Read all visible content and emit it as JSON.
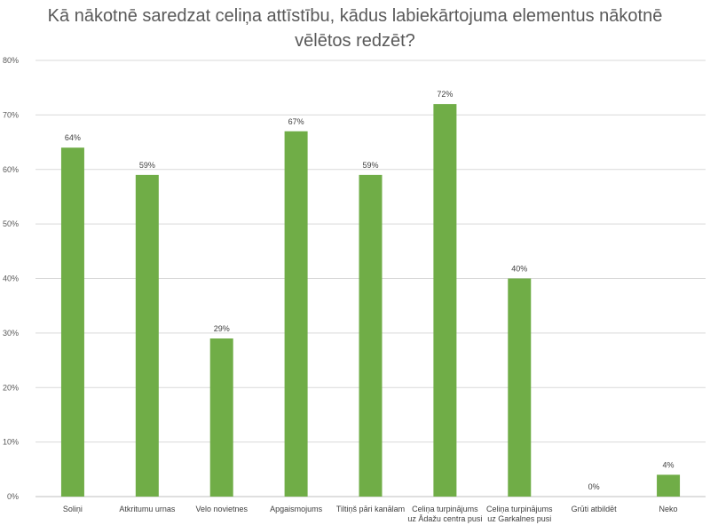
{
  "chart_data": {
    "type": "bar",
    "title": "Kā nākotnē saredzat celiņa attīstību, kādus labiekārtojuma elementus nākotnē vēlētos redzēt?",
    "categories": [
      [
        "Soliņi"
      ],
      [
        "Atkritumu urnas"
      ],
      [
        "Velo novietnes"
      ],
      [
        "Apgaismojums"
      ],
      [
        "Tiltiņš pāri kanālam"
      ],
      [
        "Celiņa turpinājums",
        "uz Ādažu centra pusi"
      ],
      [
        "Celiņa turpinājums",
        "uz Garkalnes pusi"
      ],
      [
        "Grūti atbildēt"
      ],
      [
        "Neko"
      ]
    ],
    "values": [
      64,
      59,
      29,
      67,
      59,
      72,
      40,
      0,
      4
    ],
    "data_labels": [
      "64%",
      "59%",
      "29%",
      "67%",
      "59%",
      "72%",
      "40%",
      "0%",
      "4%"
    ],
    "yticks": [
      0,
      10,
      20,
      30,
      40,
      50,
      60,
      70,
      80
    ],
    "ytick_labels": [
      "0%",
      "10%",
      "20%",
      "30%",
      "40%",
      "50%",
      "60%",
      "70%",
      "80%"
    ],
    "ylim": [
      0,
      80
    ],
    "grid": true,
    "legend": "none",
    "bar_color": "#70ad47",
    "grid_color": "#d9d9d9"
  }
}
